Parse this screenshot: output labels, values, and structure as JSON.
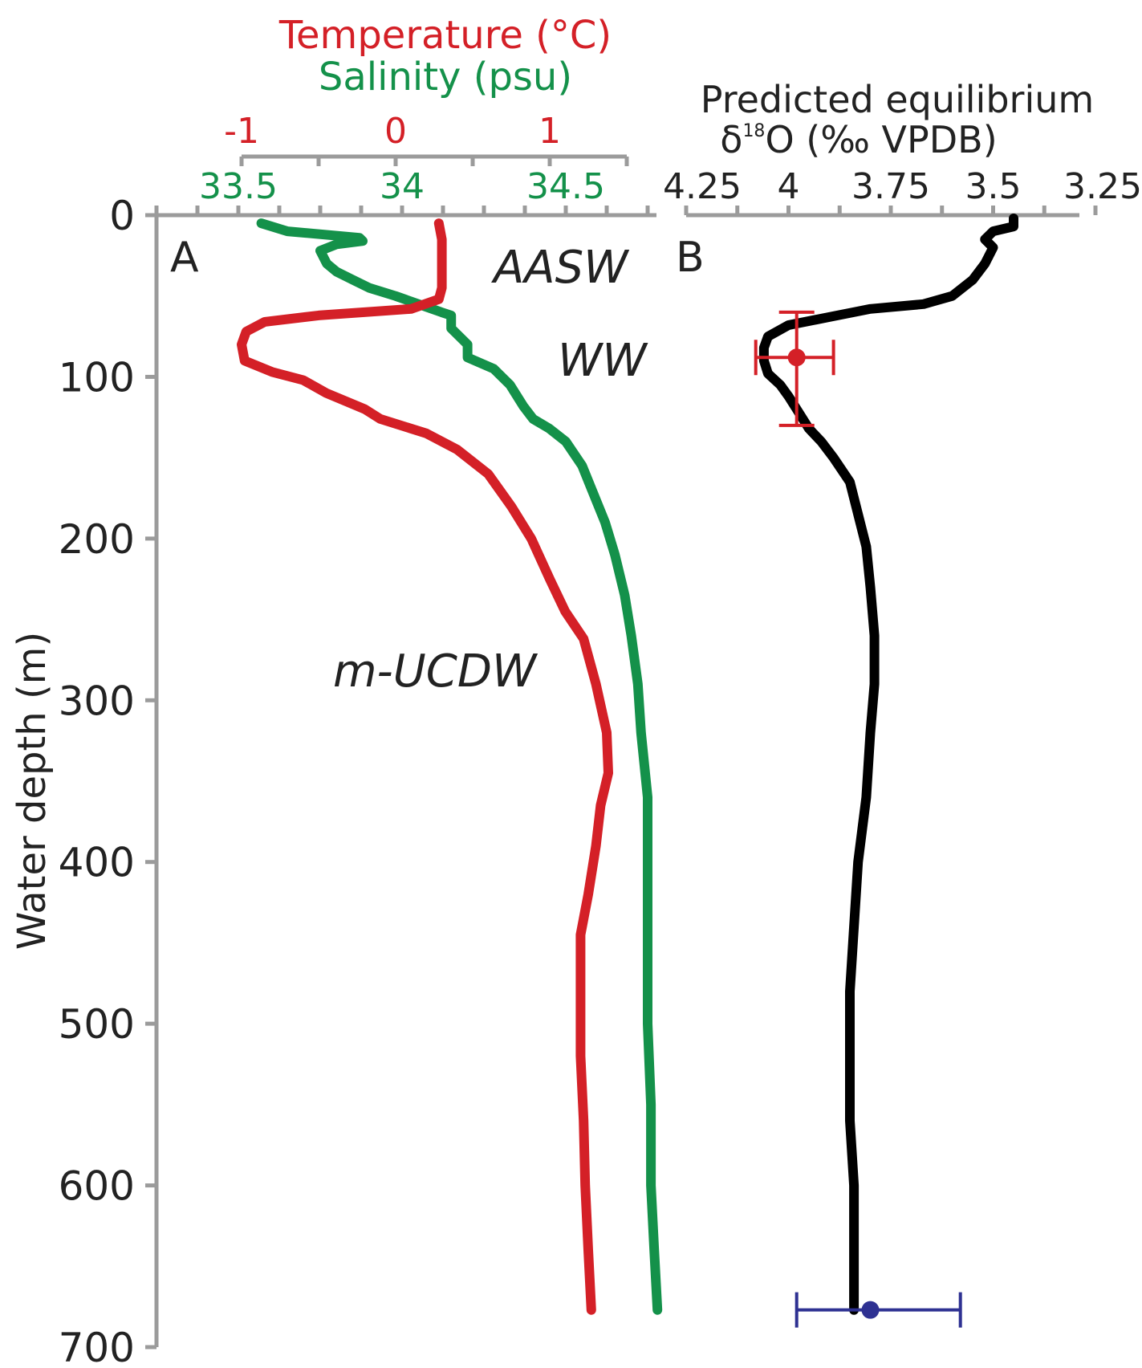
{
  "colors": {
    "temperature": "#d42027",
    "salinity": "#14914a",
    "d18o": "#000000",
    "axis": "#9b9b9b",
    "errorbar_red": "#d42027",
    "errorbar_blue": "#2e3192",
    "text": "#222222"
  },
  "chart_data": [
    {
      "type": "line",
      "panel": "A",
      "axes": {
        "depth": {
          "label": "Water depth (m)",
          "range": [
            0,
            700
          ],
          "ticks": [
            0,
            100,
            200,
            300,
            400,
            500,
            600,
            700
          ],
          "tick_labels": [
            "0",
            "100",
            "200",
            "300",
            "400",
            "500",
            "600",
            "700"
          ],
          "direction": "downward"
        },
        "temperature": {
          "label": "Temperature (°C)",
          "ticks": [
            -1,
            0,
            1
          ],
          "tick_labels": [
            "-1",
            "0",
            "1"
          ]
        },
        "salinity": {
          "label": "Salinity (psu)",
          "ticks": [
            33.5,
            34,
            34.5
          ],
          "tick_labels": [
            "33.5",
            "34",
            "34.5"
          ]
        }
      },
      "series": [
        {
          "name": "Temperature (°C)",
          "points": [
            [
              0.28,
              5
            ],
            [
              0.3,
              15
            ],
            [
              0.3,
              30
            ],
            [
              0.3,
              45
            ],
            [
              0.28,
              52
            ],
            [
              0.1,
              58
            ],
            [
              -0.5,
              62
            ],
            [
              -0.85,
              66
            ],
            [
              -0.97,
              72
            ],
            [
              -1.0,
              80
            ],
            [
              -0.98,
              90
            ],
            [
              -0.8,
              97
            ],
            [
              -0.6,
              102
            ],
            [
              -0.45,
              110
            ],
            [
              -0.2,
              120
            ],
            [
              -0.1,
              126
            ],
            [
              0.2,
              135
            ],
            [
              0.4,
              145
            ],
            [
              0.6,
              160
            ],
            [
              0.75,
              180
            ],
            [
              0.88,
              200
            ],
            [
              1.0,
              225
            ],
            [
              1.1,
              245
            ],
            [
              1.22,
              262
            ],
            [
              1.3,
              290
            ],
            [
              1.37,
              320
            ],
            [
              1.38,
              345
            ],
            [
              1.33,
              365
            ],
            [
              1.3,
              390
            ],
            [
              1.25,
              420
            ],
            [
              1.2,
              445
            ],
            [
              1.2,
              480
            ],
            [
              1.2,
              520
            ],
            [
              1.22,
              560
            ],
            [
              1.23,
              600
            ],
            [
              1.25,
              640
            ],
            [
              1.27,
              677
            ]
          ]
        },
        {
          "name": "Salinity (psu)",
          "points": [
            [
              33.57,
              5
            ],
            [
              33.65,
              10
            ],
            [
              33.87,
              14
            ],
            [
              33.88,
              16
            ],
            [
              33.8,
              18
            ],
            [
              33.75,
              22
            ],
            [
              33.77,
              30
            ],
            [
              33.8,
              35
            ],
            [
              33.85,
              40
            ],
            [
              33.9,
              45
            ],
            [
              33.98,
              50
            ],
            [
              34.05,
              55
            ],
            [
              34.12,
              60
            ],
            [
              34.15,
              62
            ],
            [
              34.15,
              70
            ],
            [
              34.2,
              80
            ],
            [
              34.2,
              88
            ],
            [
              34.28,
              95
            ],
            [
              34.33,
              105
            ],
            [
              34.37,
              118
            ],
            [
              34.4,
              126
            ],
            [
              34.45,
              132
            ],
            [
              34.5,
              140
            ],
            [
              34.55,
              155
            ],
            [
              34.58,
              170
            ],
            [
              34.62,
              190
            ],
            [
              34.65,
              210
            ],
            [
              34.68,
              235
            ],
            [
              34.7,
              260
            ],
            [
              34.72,
              290
            ],
            [
              34.73,
              320
            ],
            [
              34.75,
              360
            ],
            [
              34.75,
              400
            ],
            [
              34.75,
              450
            ],
            [
              34.75,
              500
            ],
            [
              34.76,
              550
            ],
            [
              34.76,
              600
            ],
            [
              34.77,
              640
            ],
            [
              34.78,
              677
            ]
          ]
        }
      ],
      "annotations": [
        {
          "text": "A",
          "style": "normal"
        },
        {
          "text": "AASW",
          "style": "italic",
          "depth": 35
        },
        {
          "text": "WW",
          "style": "italic",
          "depth": 88
        },
        {
          "text": "m-UCDW",
          "style": "italic",
          "depth": 275
        }
      ]
    },
    {
      "type": "line",
      "panel": "B",
      "axes": {
        "d18o": {
          "label_line1": "Predicted equilibrium",
          "label_symbol": "δ",
          "label_sup": "18",
          "label_rest": "O (‰ VPDB)",
          "ticks": [
            4.25,
            4,
            3.75,
            3.5,
            3.25
          ],
          "tick_labels": [
            "4.25",
            "4",
            "3.75",
            "3.5",
            "3.25"
          ],
          "direction": "reversed"
        }
      },
      "series": [
        {
          "name": "Predicted equilibrium δ18O",
          "points": [
            [
              3.45,
              2
            ],
            [
              3.45,
              7
            ],
            [
              3.5,
              10
            ],
            [
              3.52,
              15
            ],
            [
              3.5,
              20
            ],
            [
              3.52,
              30
            ],
            [
              3.55,
              40
            ],
            [
              3.6,
              50
            ],
            [
              3.67,
              55
            ],
            [
              3.8,
              58
            ],
            [
              3.9,
              63
            ],
            [
              4.0,
              68
            ],
            [
              4.05,
              75
            ],
            [
              4.06,
              82
            ],
            [
              4.06,
              90
            ],
            [
              4.05,
              98
            ],
            [
              4.02,
              105
            ],
            [
              4.0,
              112
            ],
            [
              3.98,
              120
            ],
            [
              3.95,
              132
            ],
            [
              3.92,
              140
            ],
            [
              3.89,
              150
            ],
            [
              3.85,
              165
            ],
            [
              3.83,
              185
            ],
            [
              3.81,
              205
            ],
            [
              3.8,
              230
            ],
            [
              3.79,
              260
            ],
            [
              3.79,
              290
            ],
            [
              3.8,
              320
            ],
            [
              3.81,
              360
            ],
            [
              3.83,
              400
            ],
            [
              3.84,
              440
            ],
            [
              3.85,
              480
            ],
            [
              3.85,
              520
            ],
            [
              3.85,
              560
            ],
            [
              3.84,
              600
            ],
            [
              3.84,
              640
            ],
            [
              3.84,
              677
            ]
          ]
        }
      ],
      "error_bars": [
        {
          "x": 3.98,
          "y": 88,
          "x_err": [
            4.08,
            3.89
          ],
          "y_err": [
            60,
            130
          ],
          "color": "red"
        },
        {
          "x": 3.8,
          "y": 677,
          "x_err": [
            3.98,
            3.58
          ],
          "y_err": null,
          "color": "blue"
        }
      ],
      "annotations": [
        {
          "text": "B",
          "style": "normal"
        }
      ]
    }
  ]
}
